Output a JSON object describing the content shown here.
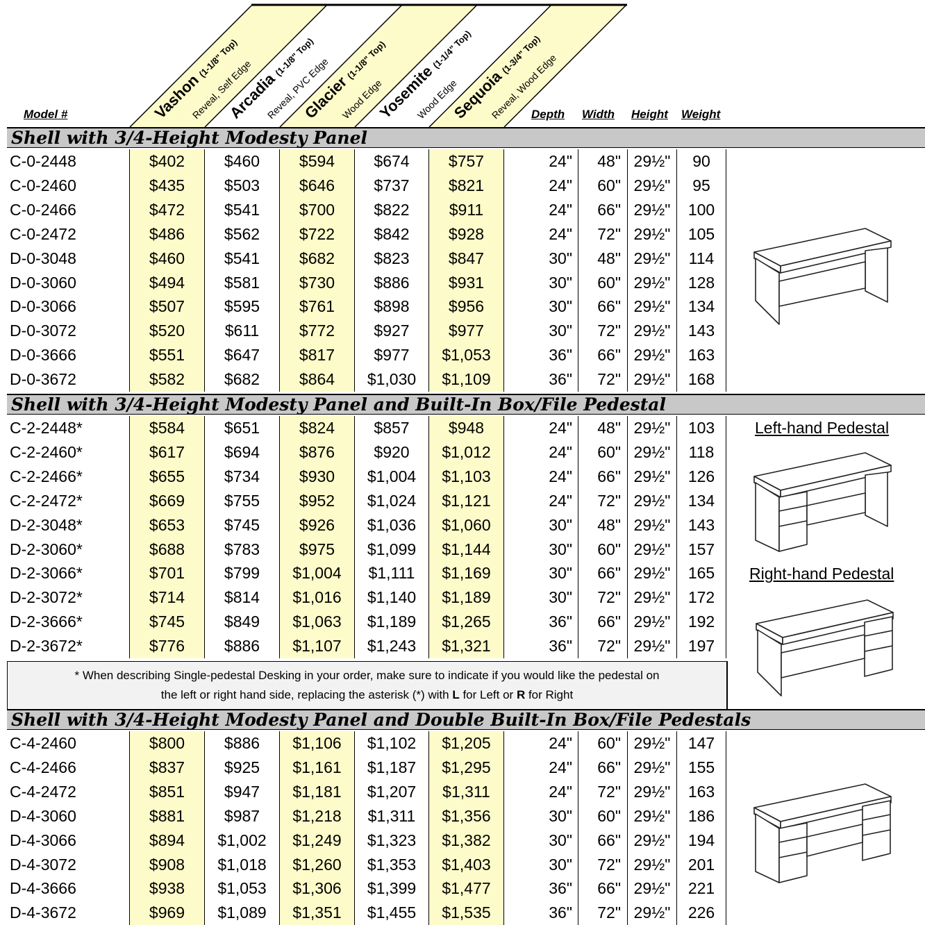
{
  "header": {
    "model_label": "Model #",
    "finishes": [
      {
        "name": "Vashon",
        "spec": "(1-1/8\" Top)",
        "edge": "Reveal, Self Edge"
      },
      {
        "name": "Arcadia",
        "spec": "(1-1/8\" Top)",
        "edge": "Reveal, PVC Edge"
      },
      {
        "name": "Glacier",
        "spec": "(1-1/8\" Top)",
        "edge": "Wood Edge"
      },
      {
        "name": "Yosemite",
        "spec": "(1-1/4\" Top)",
        "edge": "Wood Edge"
      },
      {
        "name": "Sequoia",
        "spec": "(1-3/4\" Top)",
        "edge": "Reveal, Wood Edge"
      }
    ],
    "depth_label": "Depth",
    "width_label": "Width",
    "height_label": "Height",
    "weight_label": "Weight"
  },
  "sections": [
    {
      "title": "Shell with 3/4-Height Modesty Panel",
      "rows": [
        [
          "C-0-2448",
          "$402",
          "$460",
          "$594",
          "$674",
          "$757",
          "24\"",
          "48\"",
          "29½\"",
          "90"
        ],
        [
          "C-0-2460",
          "$435",
          "$503",
          "$646",
          "$737",
          "$821",
          "24\"",
          "60\"",
          "29½\"",
          "95"
        ],
        [
          "C-0-2466",
          "$472",
          "$541",
          "$700",
          "$822",
          "$911",
          "24\"",
          "66\"",
          "29½\"",
          "100"
        ],
        [
          "C-0-2472",
          "$486",
          "$562",
          "$722",
          "$842",
          "$928",
          "24\"",
          "72\"",
          "29½\"",
          "105"
        ],
        [
          "D-0-3048",
          "$460",
          "$541",
          "$682",
          "$823",
          "$847",
          "30\"",
          "48\"",
          "29½\"",
          "114"
        ],
        [
          "D-0-3060",
          "$494",
          "$581",
          "$730",
          "$886",
          "$931",
          "30\"",
          "60\"",
          "29½\"",
          "128"
        ],
        [
          "D-0-3066",
          "$507",
          "$595",
          "$761",
          "$898",
          "$956",
          "30\"",
          "66\"",
          "29½\"",
          "134"
        ],
        [
          "D-0-3072",
          "$520",
          "$611",
          "$772",
          "$927",
          "$977",
          "30\"",
          "72\"",
          "29½\"",
          "143"
        ],
        [
          "D-0-3666",
          "$551",
          "$647",
          "$817",
          "$977",
          "$1,053",
          "36\"",
          "66\"",
          "29½\"",
          "163"
        ],
        [
          "D-0-3672",
          "$582",
          "$682",
          "$864",
          "$1,030",
          "$1,109",
          "36\"",
          "72\"",
          "29½\"",
          "168"
        ]
      ]
    },
    {
      "title": "Shell with 3/4-Height Modesty Panel and Built-In Box/File Pedestal",
      "rows": [
        [
          "C-2-2448*",
          "$584",
          "$651",
          "$824",
          "$857",
          "$948",
          "24\"",
          "48\"",
          "29½\"",
          "103"
        ],
        [
          "C-2-2460*",
          "$617",
          "$694",
          "$876",
          "$920",
          "$1,012",
          "24\"",
          "60\"",
          "29½\"",
          "118"
        ],
        [
          "C-2-2466*",
          "$655",
          "$734",
          "$930",
          "$1,004",
          "$1,103",
          "24\"",
          "66\"",
          "29½\"",
          "126"
        ],
        [
          "C-2-2472*",
          "$669",
          "$755",
          "$952",
          "$1,024",
          "$1,121",
          "24\"",
          "72\"",
          "29½\"",
          "134"
        ],
        [
          "D-2-3048*",
          "$653",
          "$745",
          "$926",
          "$1,036",
          "$1,060",
          "30\"",
          "48\"",
          "29½\"",
          "143"
        ],
        [
          "D-2-3060*",
          "$688",
          "$783",
          "$975",
          "$1,099",
          "$1,144",
          "30\"",
          "60\"",
          "29½\"",
          "157"
        ],
        [
          "D-2-3066*",
          "$701",
          "$799",
          "$1,004",
          "$1,111",
          "$1,169",
          "30\"",
          "66\"",
          "29½\"",
          "165"
        ],
        [
          "D-2-3072*",
          "$714",
          "$814",
          "$1,016",
          "$1,140",
          "$1,189",
          "30\"",
          "72\"",
          "29½\"",
          "172"
        ],
        [
          "D-2-3666*",
          "$745",
          "$849",
          "$1,063",
          "$1,189",
          "$1,265",
          "36\"",
          "66\"",
          "29½\"",
          "192"
        ],
        [
          "D-2-3672*",
          "$776",
          "$886",
          "$1,107",
          "$1,243",
          "$1,321",
          "36\"",
          "72\"",
          "29½\"",
          "197"
        ]
      ]
    },
    {
      "title": "Shell with 3/4-Height Modesty Panel and Double Built-In Box/File Pedestals",
      "rows": [
        [
          "C-4-2460",
          "$800",
          "$886",
          "$1,106",
          "$1,102",
          "$1,205",
          "24\"",
          "60\"",
          "29½\"",
          "147"
        ],
        [
          "C-4-2466",
          "$837",
          "$925",
          "$1,161",
          "$1,187",
          "$1,295",
          "24\"",
          "66\"",
          "29½\"",
          "155"
        ],
        [
          "C-4-2472",
          "$851",
          "$947",
          "$1,181",
          "$1,207",
          "$1,311",
          "24\"",
          "72\"",
          "29½\"",
          "163"
        ],
        [
          "D-4-3060",
          "$881",
          "$987",
          "$1,218",
          "$1,311",
          "$1,356",
          "30\"",
          "60\"",
          "29½\"",
          "186"
        ],
        [
          "D-4-3066",
          "$894",
          "$1,002",
          "$1,249",
          "$1,323",
          "$1,382",
          "30\"",
          "66\"",
          "29½\"",
          "194"
        ],
        [
          "D-4-3072",
          "$908",
          "$1,018",
          "$1,260",
          "$1,353",
          "$1,403",
          "30\"",
          "72\"",
          "29½\"",
          "201"
        ],
        [
          "D-4-3666",
          "$938",
          "$1,053",
          "$1,306",
          "$1,399",
          "$1,477",
          "36\"",
          "66\"",
          "29½\"",
          "221"
        ],
        [
          "D-4-3672",
          "$969",
          "$1,089",
          "$1,351",
          "$1,455",
          "$1,535",
          "36\"",
          "72\"",
          "29½\"",
          "226"
        ]
      ]
    }
  ],
  "footnote": {
    "line1": "* When describing Single-pedestal Desking in your order, make sure to indicate if you would like the pedestal on",
    "line2_pre": "the left or right hand side, replacing the asterisk (*) with ",
    "line2_l": "L",
    "line2_mid": " for Left or ",
    "line2_r": "R",
    "line2_post": " for Right"
  },
  "side_labels": {
    "left": "Left-hand Pedestal",
    "right": "Right-hand Pedestal"
  },
  "colors": {
    "highlight": "#fdfbc9",
    "section_bg": "#c8c8c8",
    "footnote_bg": "#f2f2f2"
  }
}
